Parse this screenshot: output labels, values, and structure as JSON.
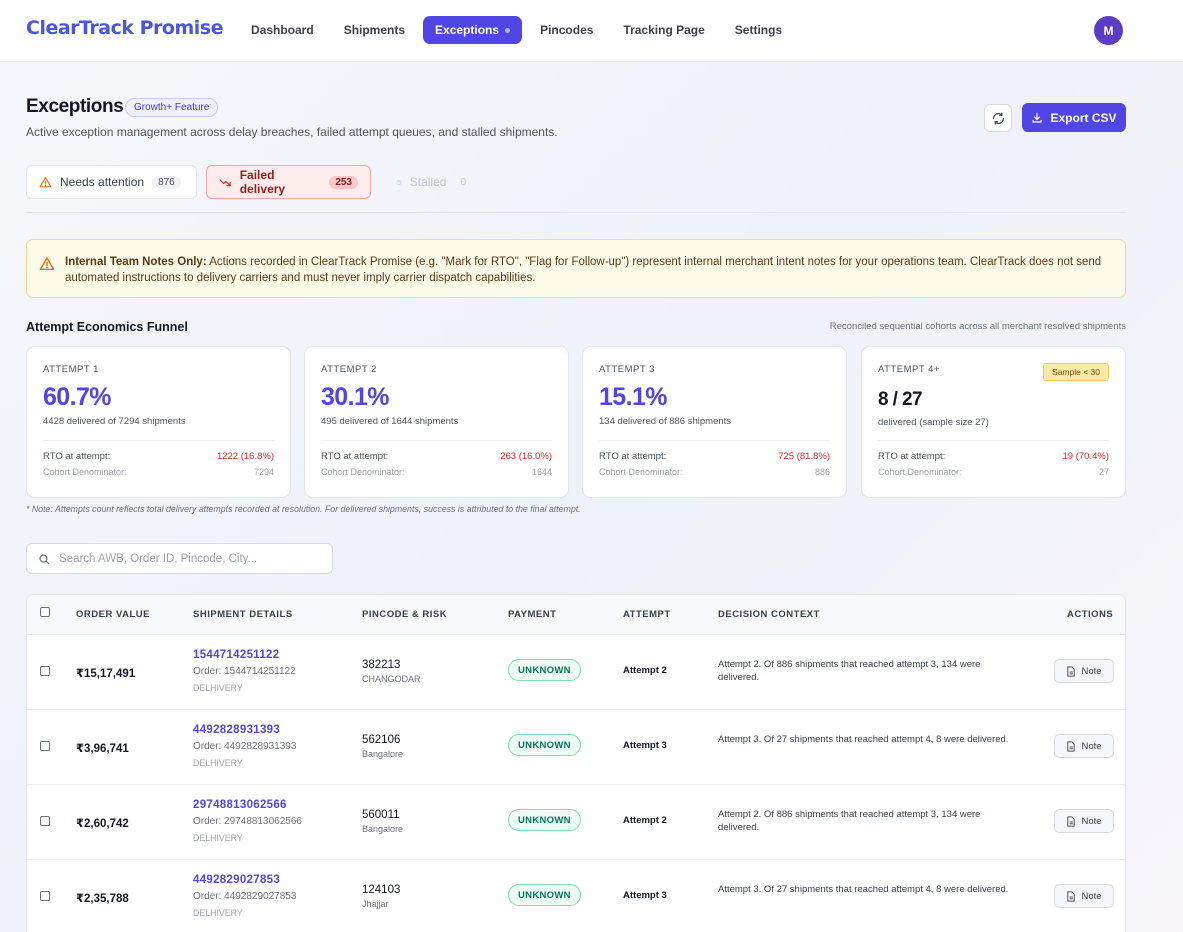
{
  "brand": "ClearTrack Promise",
  "nav": [
    "Dashboard",
    "Shipments",
    "Exceptions",
    "Pincodes",
    "Tracking Page",
    "Settings"
  ],
  "avatar": "M",
  "header": {
    "title": "Exceptions",
    "feature_badge": "Growth+ Feature",
    "subtitle": "Active exception management across delay breaches, failed attempt queues, and stalled shipments.",
    "export_label": "Export CSV"
  },
  "filters": [
    {
      "label": "Needs attention",
      "count": "876"
    },
    {
      "label": "Failed delivery",
      "count": "253"
    },
    {
      "label": "Stalled",
      "count": "0"
    }
  ],
  "notice": {
    "bold": "Internal Team Notes Only:",
    "text": " Actions recorded in ClearTrack Promise (e.g. \"Mark for RTO\", \"Flag for Follow-up\") represent internal merchant intent notes for your operations team. ClearTrack does not send automated instructions to delivery carriers and must never imply carrier dispatch capabilities."
  },
  "funnel": {
    "title": "Attempt Economics Funnel",
    "subtitle": "Reconciled sequential cohorts across all merchant resolved shipments",
    "note": "* Note: Attempts count reflects total delivery attempts recorded at resolution. For delivered shipments, success is attributed to the final attempt.",
    "cards": [
      {
        "label": "ATTEMPT 1",
        "value": "60.7%",
        "desc": "4428 delivered of 7294 shipments",
        "rto_label": "RTO at attempt:",
        "rto": "1222 (16.8%)",
        "denom_label": "Cohort Denominator:",
        "denom": "7294"
      },
      {
        "label": "ATTEMPT 2",
        "value": "30.1%",
        "desc": "495 delivered of 1644 shipments",
        "rto_label": "RTO at attempt:",
        "rto": "263 (16.0%)",
        "denom_label": "Cohort Denominator:",
        "denom": "1644"
      },
      {
        "label": "ATTEMPT 3",
        "value": "15.1%",
        "desc": "134 delivered of 886 shipments",
        "rto_label": "RTO at attempt:",
        "rto": "725 (81.8%)",
        "denom_label": "Cohort Denominator:",
        "denom": "886"
      },
      {
        "label": "ATTEMPT 4+",
        "value": "8 / 27",
        "desc": "delivered (sample size 27)",
        "rto_label": "RTO at attempt:",
        "rto": "19 (70.4%)",
        "denom_label": "Cohort Denominator:",
        "denom": "27",
        "badge": "Sample < 30"
      }
    ]
  },
  "search": {
    "placeholder": "Search AWB, Order ID, Pincode, City..."
  },
  "table": {
    "headers": [
      "ORDER VALUE",
      "SHIPMENT DETAILS",
      "PINCODE & RISK",
      "PAYMENT",
      "ATTEMPT",
      "DECISION CONTEXT",
      "ACTIONS"
    ],
    "rows": [
      {
        "value": "₹15,17,491",
        "awb": "1544714251122",
        "order": "Order: 1544714251122",
        "carrier": "DELHIVERY",
        "pincode": "382213",
        "city": "CHANGODAR",
        "payment": "UNKNOWN",
        "attempt": "Attempt 2",
        "context": "Attempt 2. Of 886 shipments that reached attempt 3, 134 were delivered.",
        "action": "Note"
      },
      {
        "value": "₹3,96,741",
        "awb": "4492828931393",
        "order": "Order: 4492828931393",
        "carrier": "DELHIVERY",
        "pincode": "562106",
        "city": "Bangalore",
        "payment": "UNKNOWN",
        "attempt": "Attempt 3",
        "context": "Attempt 3. Of 27 shipments that reached attempt 4, 8 were delivered.",
        "action": "Note"
      },
      {
        "value": "₹2,60,742",
        "awb": "29748813062566",
        "order": "Order: 29748813062566",
        "carrier": "DELHIVERY",
        "pincode": "560011",
        "city": "Bangalore",
        "payment": "UNKNOWN",
        "attempt": "Attempt 2",
        "context": "Attempt 2. Of 886 shipments that reached attempt 3, 134 were delivered.",
        "action": "Note"
      },
      {
        "value": "₹2,35,788",
        "awb": "4492829027853",
        "order": "Order: 4492829027853",
        "carrier": "DELHIVERY",
        "pincode": "124103",
        "city": "Jhajjar",
        "payment": "UNKNOWN",
        "attempt": "Attempt 3",
        "context": "Attempt 3. Of 27 shipments that reached attempt 4, 8 were delivered.",
        "action": "Note"
      }
    ]
  },
  "colors": {
    "accent": "#4f46e5",
    "danger": "#dc2626",
    "success": "#047857",
    "warning_bg": "#fefaea"
  }
}
